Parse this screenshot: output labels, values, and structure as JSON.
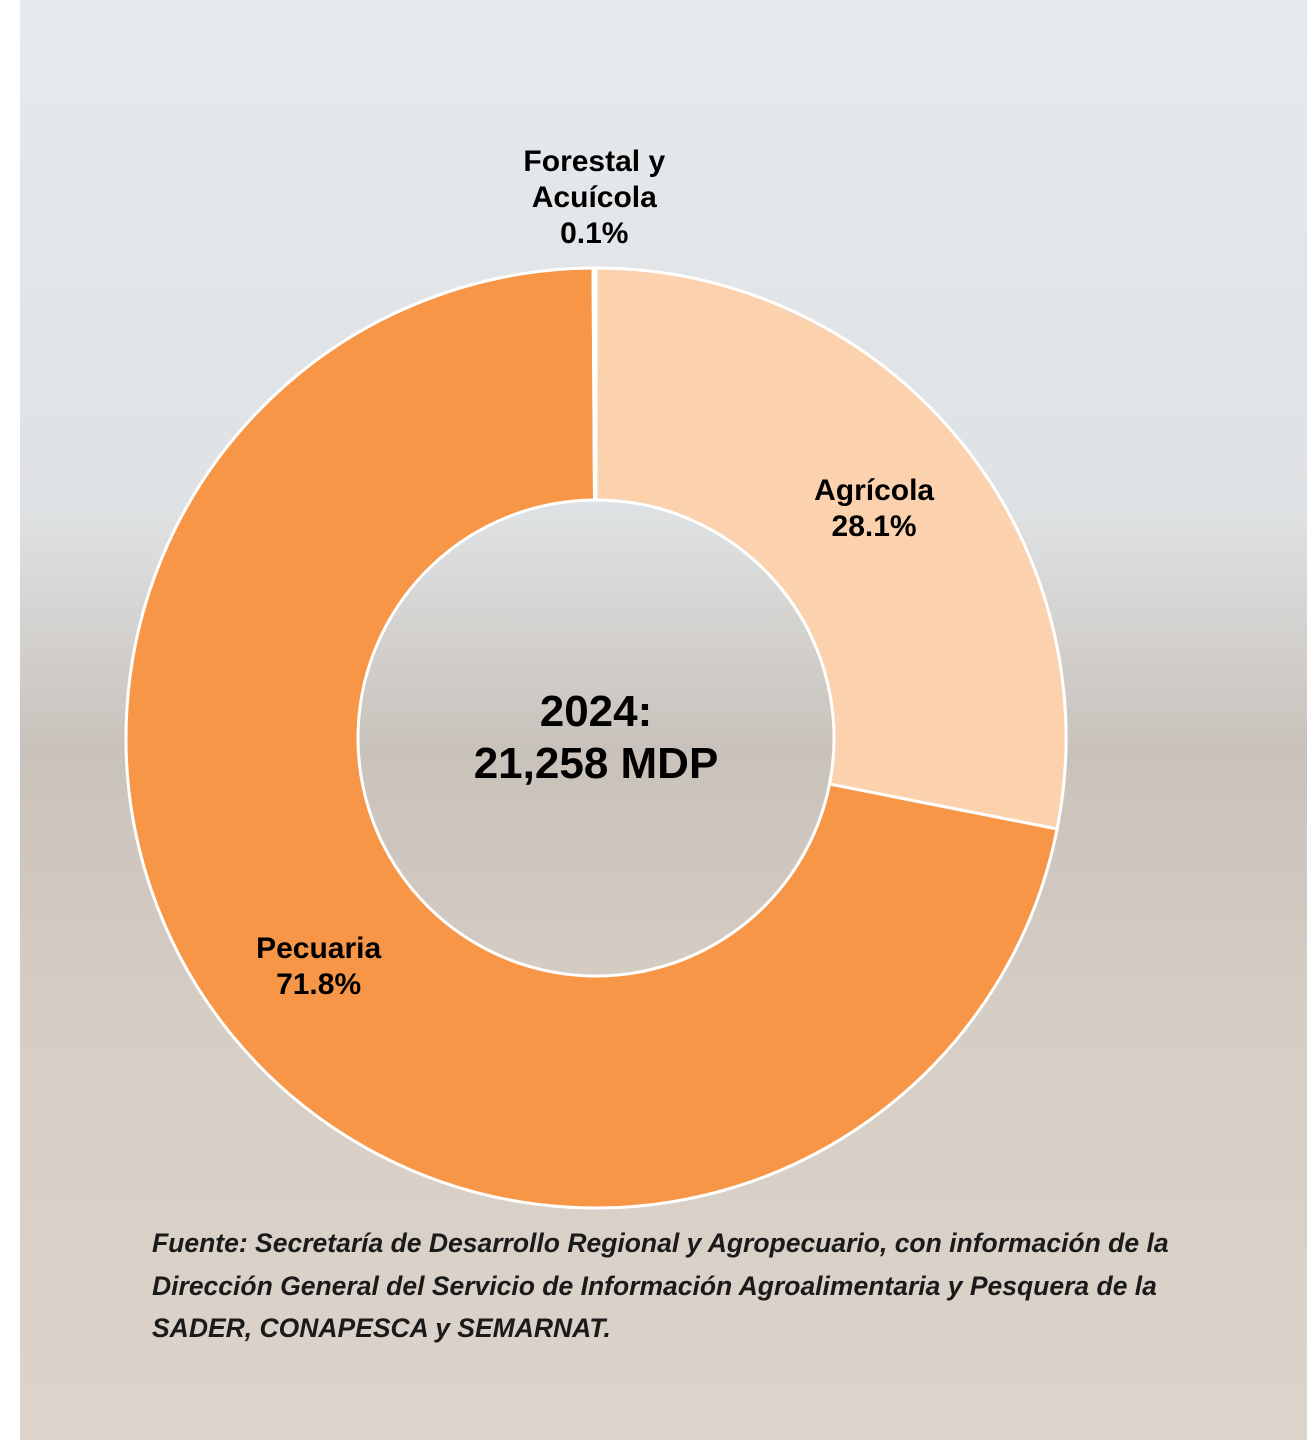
{
  "chart_data": {
    "type": "donut",
    "categories": [
      "Agrícola",
      "Pecuaria",
      "Forestal y Acuícola"
    ],
    "values": [
      28.1,
      71.8,
      0.1
    ],
    "value_labels": [
      "28.1%",
      "71.8%",
      "0.1%"
    ],
    "colors": [
      "#fbd1ae",
      "#f79646",
      "#e46c0a"
    ],
    "center_text": [
      "2024:",
      "21,258 MDP"
    ]
  },
  "source_note": "Fuente: Secretaría de Desarrollo Regional y Agropecuario, con información de la Dirección General del Servicio de Información Agroalimentaria y Pesquera de la SADER, CONAPESCA y SEMARNAT."
}
